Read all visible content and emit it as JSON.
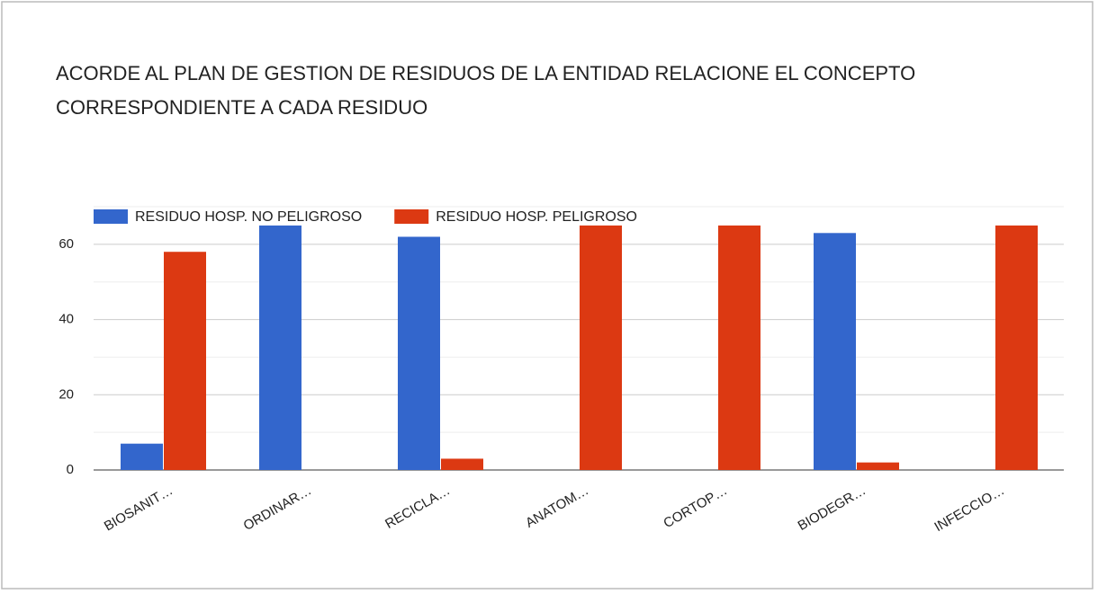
{
  "chart_data": {
    "type": "bar",
    "title_lines": [
      "ACORDE AL PLAN DE GESTION DE RESIDUOS DE LA ENTIDAD RELACIONE EL CONCEPTO",
      "CORRESPONDIENTE A CADA RESIDUO"
    ],
    "categories": [
      "BIOSANIT…",
      "ORDINAR…",
      "RECICLA…",
      "ANATOM…",
      "CORTOP…",
      "BIODEGR…",
      "INFECCIO…"
    ],
    "series": [
      {
        "name": "RESIDUO HOSP. NO PELIGROSO",
        "color": "#3366cc",
        "values": [
          7,
          65,
          62,
          0,
          0,
          63,
          0
        ]
      },
      {
        "name": "RESIDUO HOSP. PELIGROSO",
        "color": "#dc3912",
        "values": [
          58,
          0,
          3,
          65,
          65,
          2,
          65
        ]
      }
    ],
    "ylim": [
      0,
      70
    ],
    "yticks": [
      0,
      20,
      40,
      60
    ],
    "minor_yticks": [
      10,
      30,
      50,
      70
    ],
    "grid": true,
    "legend": "top"
  }
}
